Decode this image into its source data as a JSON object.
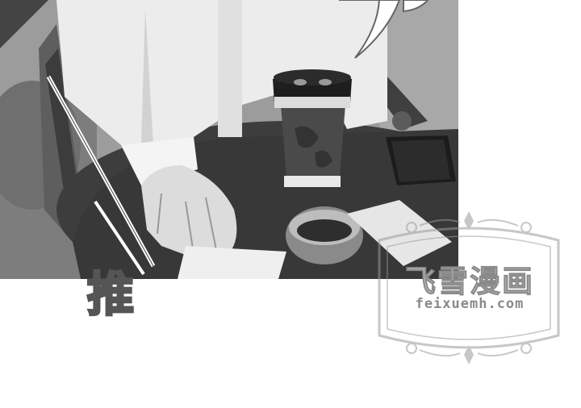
{
  "panel": {
    "description_colors": {
      "table": "#3b3b3b",
      "cup": "#4a4a4a",
      "background": "#8d8d8d"
    }
  },
  "sfx": {
    "text": "推"
  },
  "watermark": {
    "title": "飞雪漫画",
    "url": "feixuemh.com"
  }
}
